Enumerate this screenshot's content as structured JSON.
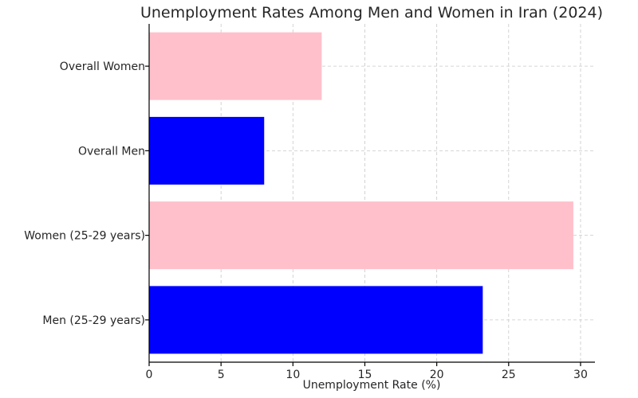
{
  "chart_data": {
    "type": "bar",
    "orientation": "horizontal",
    "title": "Unemployment Rates Among Men and Women in Iran (2024)",
    "xlabel": "Unemployment Rate (%)",
    "ylabel": "",
    "xlim": [
      0,
      31
    ],
    "xticks": [
      0,
      5,
      10,
      15,
      20,
      25,
      30
    ],
    "grid": true,
    "categories": [
      "Men (25-29 years)",
      "Women (25-29 years)",
      "Overall Men",
      "Overall Women"
    ],
    "values": [
      23.2,
      29.5,
      8.0,
      12.0
    ],
    "colors": [
      "#0000ff",
      "#ffc0cb",
      "#0000ff",
      "#ffc0cb"
    ]
  }
}
